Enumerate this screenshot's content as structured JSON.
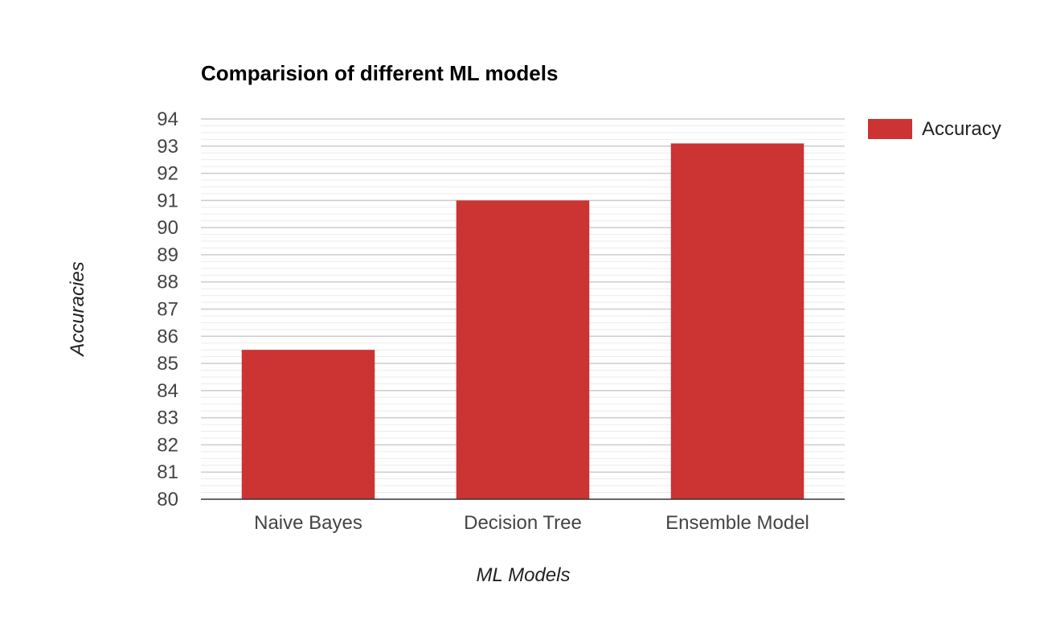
{
  "chart_data": {
    "type": "bar",
    "title": "Comparision of different ML models",
    "xlabel": "ML Models",
    "ylabel": "Accuracies",
    "categories": [
      "Naive Bayes",
      "Decision Tree",
      "Ensemble Model"
    ],
    "series": [
      {
        "name": "Accuracy",
        "values": [
          85.5,
          91.0,
          93.1
        ],
        "color": "#cc3333"
      }
    ],
    "ylim": [
      80,
      94
    ],
    "yticks": [
      "80",
      "81",
      "82",
      "83",
      "84",
      "85",
      "86",
      "87",
      "88",
      "89",
      "90",
      "91",
      "92",
      "93",
      "94"
    ],
    "grid": true,
    "legend": "right"
  }
}
